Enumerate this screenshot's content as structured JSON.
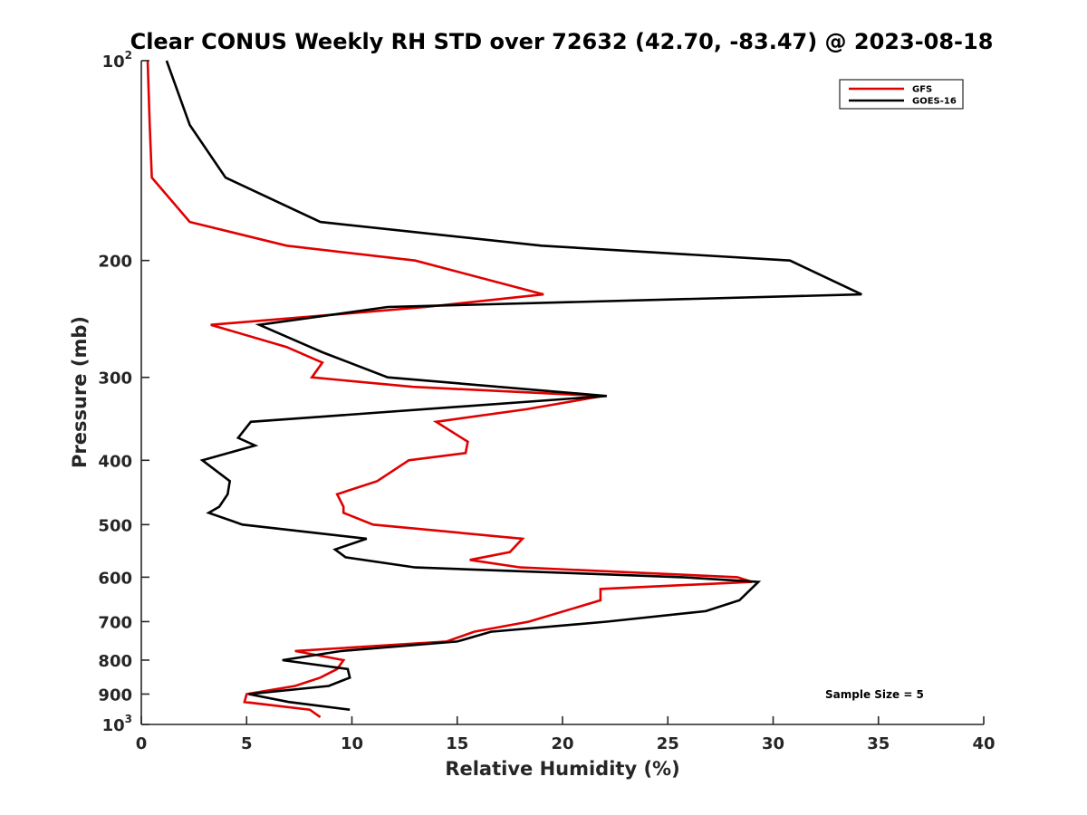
{
  "chart_data": {
    "type": "line",
    "title": "Clear CONUS Weekly RH STD over 72632 (42.70, -83.47) @ 2023-08-18",
    "xlabel": "Relative Humidity (%)",
    "ylabel": "Pressure (mb)",
    "xlim": [
      0,
      40
    ],
    "ylim": [
      100,
      1000
    ],
    "y_scale": "log",
    "y_reversed": true,
    "grid": false,
    "legend_position": "top-right",
    "x_ticks": [
      "0",
      "5",
      "10",
      "15",
      "20",
      "25",
      "30",
      "35",
      "40"
    ],
    "y_ticks": [
      {
        "value": 100,
        "base": "10",
        "exp": "2"
      },
      {
        "value": 200,
        "label": "200"
      },
      {
        "value": 300,
        "label": "300"
      },
      {
        "value": 400,
        "label": "400"
      },
      {
        "value": 500,
        "label": "500"
      },
      {
        "value": 600,
        "label": "600"
      },
      {
        "value": 700,
        "label": "700"
      },
      {
        "value": 800,
        "label": "800"
      },
      {
        "value": 900,
        "label": "900"
      },
      {
        "value": 1000,
        "base": "10",
        "exp": "3"
      }
    ],
    "annotation": "Sample Size = 5",
    "series": [
      {
        "name": "GFS",
        "color": "#e00000",
        "points": [
          [
            0.3,
            100
          ],
          [
            0.4,
            125
          ],
          [
            0.5,
            150
          ],
          [
            2.3,
            175
          ],
          [
            6.9,
            190
          ],
          [
            13,
            200
          ],
          [
            19.1,
            225
          ],
          [
            13.5,
            235
          ],
          [
            3.3,
            250
          ],
          [
            6.9,
            270
          ],
          [
            8.6,
            285
          ],
          [
            8.1,
            300
          ],
          [
            12.9,
            310
          ],
          [
            21.9,
            320
          ],
          [
            18.3,
            335
          ],
          [
            14,
            350
          ],
          [
            15.5,
            375
          ],
          [
            15.4,
            390
          ],
          [
            12.7,
            400
          ],
          [
            11.2,
            430
          ],
          [
            9.3,
            450
          ],
          [
            9.6,
            470
          ],
          [
            9.6,
            480
          ],
          [
            11,
            500
          ],
          [
            18.1,
            525
          ],
          [
            17.5,
            550
          ],
          [
            15.6,
            565
          ],
          [
            18,
            580
          ],
          [
            28.3,
            600
          ],
          [
            29,
            610
          ],
          [
            21.8,
            625
          ],
          [
            21.8,
            650
          ],
          [
            18.4,
            700
          ],
          [
            15.8,
            725
          ],
          [
            14.5,
            750
          ],
          [
            7.3,
            775
          ],
          [
            9.6,
            800
          ],
          [
            9.3,
            825
          ],
          [
            8.5,
            850
          ],
          [
            7.3,
            875
          ],
          [
            5,
            900
          ],
          [
            4.9,
            925
          ],
          [
            8.0,
            950
          ],
          [
            8.5,
            975
          ]
        ]
      },
      {
        "name": "GOES-16",
        "color": "#000000",
        "points": [
          [
            1.2,
            100
          ],
          [
            2.3,
            125
          ],
          [
            4.0,
            150
          ],
          [
            8.5,
            175
          ],
          [
            19,
            190
          ],
          [
            30.8,
            200
          ],
          [
            34.2,
            225
          ],
          [
            11.7,
            235
          ],
          [
            5.6,
            250
          ],
          [
            8.6,
            275
          ],
          [
            11.7,
            300
          ],
          [
            22.1,
            320
          ],
          [
            5.2,
            350
          ],
          [
            4.6,
            370
          ],
          [
            5.4,
            380
          ],
          [
            2.9,
            400
          ],
          [
            4.2,
            430
          ],
          [
            4.1,
            450
          ],
          [
            3.7,
            470
          ],
          [
            3.2,
            480
          ],
          [
            4.8,
            500
          ],
          [
            10.7,
            525
          ],
          [
            9.2,
            545
          ],
          [
            9.7,
            560
          ],
          [
            13,
            580
          ],
          [
            25.7,
            600
          ],
          [
            29.3,
            610
          ],
          [
            28.4,
            650
          ],
          [
            26.8,
            675
          ],
          [
            22.1,
            700
          ],
          [
            16.6,
            725
          ],
          [
            15.0,
            750
          ],
          [
            9.5,
            775
          ],
          [
            6.7,
            800
          ],
          [
            9.8,
            825
          ],
          [
            9.9,
            850
          ],
          [
            8.9,
            875
          ],
          [
            5.1,
            900
          ],
          [
            7.0,
            925
          ],
          [
            9.9,
            950
          ]
        ]
      }
    ]
  }
}
